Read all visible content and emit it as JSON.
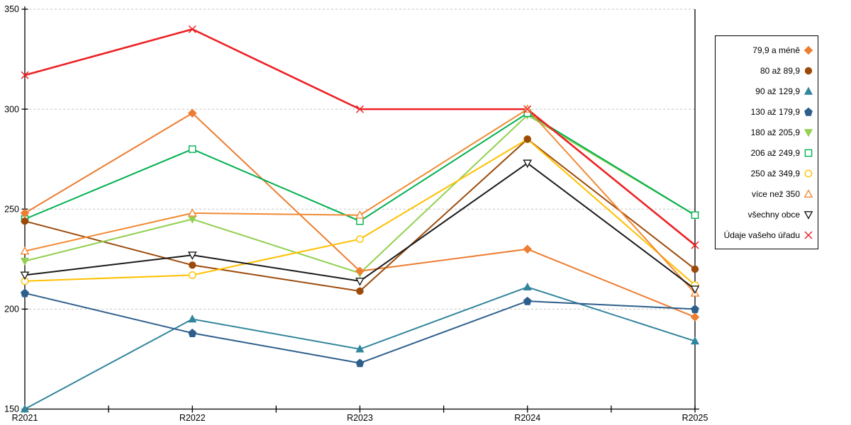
{
  "chart_data": {
    "type": "line",
    "title": "",
    "xlabel": "",
    "ylabel": "",
    "categories": [
      "R2021",
      "R2022",
      "R2023",
      "R2024",
      "R2025"
    ],
    "ylim": [
      150,
      350
    ],
    "ytick_step": 50,
    "yticklabels": [
      "150",
      "200",
      "250",
      "300",
      "350"
    ],
    "grid": "horizontal-dashed",
    "gridline_color": "#C6C6C6",
    "axis_color": "#000000",
    "legend_position": "right-box",
    "series": [
      {
        "name": "79,9 a méně",
        "marker": "diamond",
        "fill": "filled",
        "color": "#ED7D31",
        "values": [
          248,
          298,
          219,
          230,
          196
        ]
      },
      {
        "name": "80 až 89,9",
        "marker": "circle",
        "fill": "filled",
        "color": "#9C4A0A",
        "values": [
          244,
          222,
          209,
          285,
          220
        ]
      },
      {
        "name": "90 až 129,9",
        "marker": "triangle-up",
        "fill": "filled",
        "color": "#31859C",
        "values": [
          150,
          195,
          180,
          211,
          184
        ]
      },
      {
        "name": "130 až 179,9",
        "marker": "pentagon",
        "fill": "filled",
        "color": "#2E5E8C",
        "values": [
          208,
          188,
          173,
          204,
          200
        ]
      },
      {
        "name": "180 až 205,9",
        "marker": "triangle-down",
        "fill": "filled",
        "color": "#92D050",
        "values": [
          224,
          245,
          218,
          297,
          247
        ]
      },
      {
        "name": "206 až 249,9",
        "marker": "square",
        "fill": "open",
        "color": "#00B050",
        "values": [
          245,
          280,
          244,
          298,
          247
        ]
      },
      {
        "name": "250 až 349,9",
        "marker": "circle",
        "fill": "open",
        "color": "#FFC000",
        "values": [
          214,
          217,
          235,
          285,
          212
        ]
      },
      {
        "name": "více než 350",
        "marker": "triangle-up",
        "fill": "open",
        "color": "#F18A34",
        "values": [
          229,
          248,
          247,
          300,
          208
        ]
      },
      {
        "name": "všechny obce",
        "marker": "triangle-down",
        "fill": "open",
        "color": "#1A1A1A",
        "values": [
          217,
          227,
          214,
          273,
          210
        ]
      },
      {
        "name": "Údaje vašeho úřadu",
        "marker": "x",
        "fill": "open",
        "color": "#ED2024",
        "values": [
          317,
          340,
          300,
          300,
          232
        ]
      }
    ]
  }
}
